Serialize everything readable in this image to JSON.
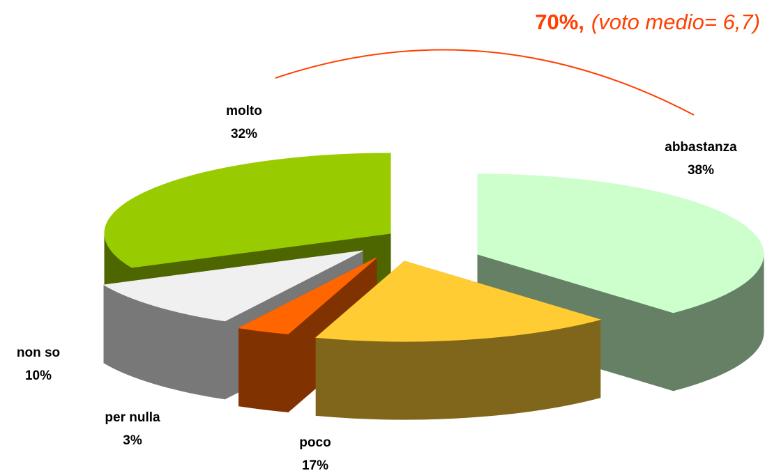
{
  "chart_data": {
    "type": "pie3d",
    "annotation": {
      "value": 70,
      "label": "70%,",
      "note": "(voto medio= 6,7)"
    },
    "categories": [
      "abbastanza",
      "poco",
      "per nulla",
      "non so",
      "molto"
    ],
    "values": [
      38,
      17,
      3,
      10,
      32
    ],
    "value_labels": [
      "38%",
      "17%",
      "3%",
      "10%",
      "32%"
    ],
    "colors": [
      "#ccffcc",
      "#ffcc33",
      "#ff6600",
      "#f0f0f0",
      "#99cc00"
    ]
  }
}
